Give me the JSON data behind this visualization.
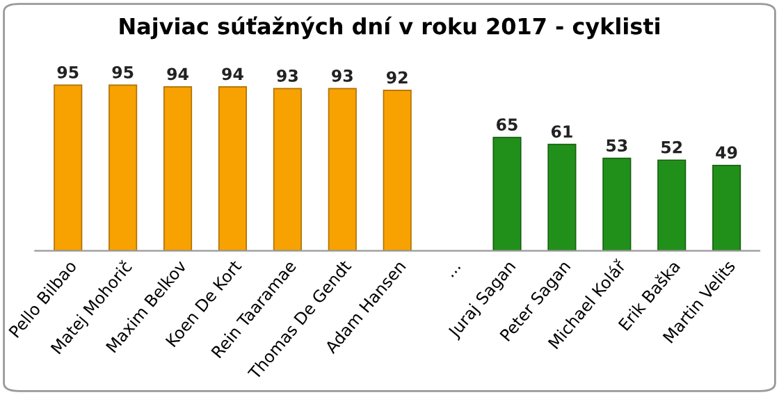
{
  "chart_data": {
    "type": "bar",
    "title": "Najviac súťažných dní v roku 2017 - cyklisti",
    "categories": [
      "Pello Bilbao",
      "Matej Mohorič",
      "Maxim Belkov",
      "Koen De Kort",
      "Rein Taaramae",
      "Thomas De Gendt",
      "Adam Hansen",
      "...",
      "Juraj Sagan",
      "Peter Sagan",
      "Michael Kolář",
      "Erik Baška",
      "Martin Velits"
    ],
    "values": [
      95,
      95,
      94,
      94,
      93,
      93,
      92,
      null,
      65,
      61,
      53,
      52,
      49
    ],
    "colors": [
      "#f7a200",
      "#f7a200",
      "#f7a200",
      "#f7a200",
      "#f7a200",
      "#f7a200",
      "#f7a200",
      "#f7a200",
      "#21901a",
      "#21901a",
      "#21901a",
      "#21901a",
      "#21901a"
    ],
    "data_labels": true,
    "grid": false,
    "legend": false,
    "tick_labels": "x"
  }
}
